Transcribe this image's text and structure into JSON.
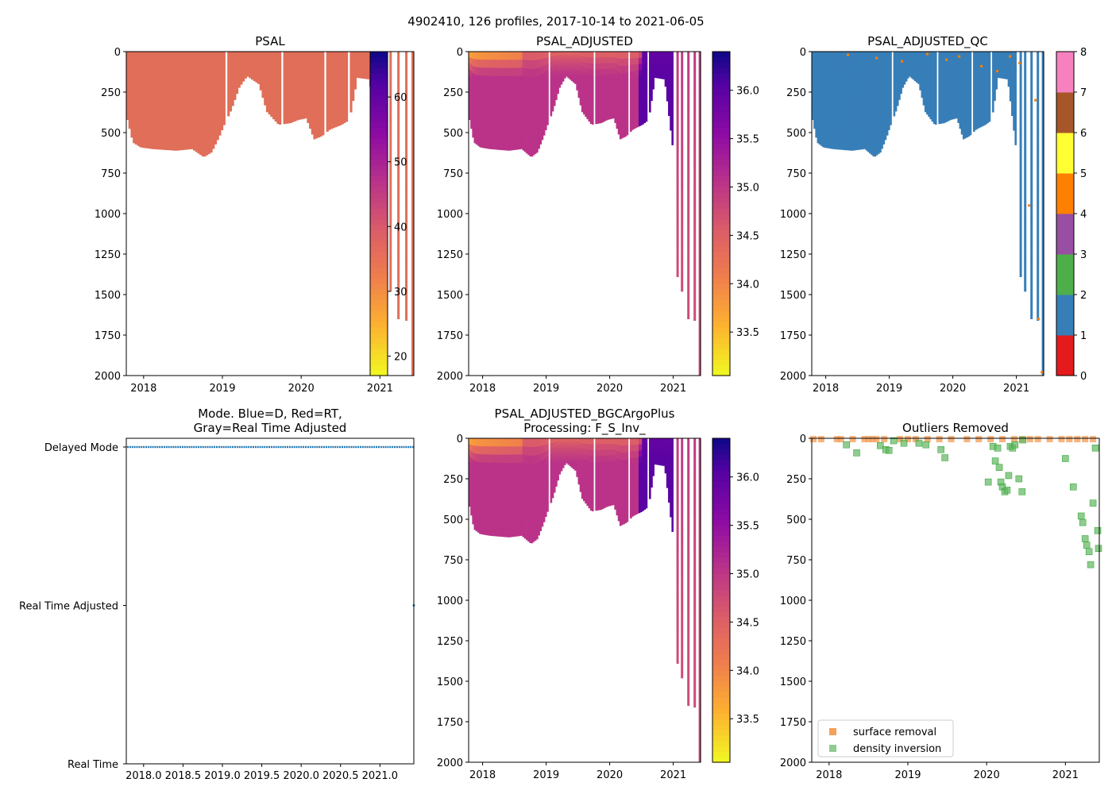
{
  "suptitle": "4902410, 126 profiles, 2017-10-14 to 2021-06-05",
  "colors": {
    "psal_fill": "#e06e58",
    "qc1": "#377eb8",
    "qc_orange": "#ff7f00",
    "dm": "#1f77b4",
    "surface": "#f5a15c",
    "density": "#5fb75f",
    "density_edge": "#2ca02c"
  },
  "chart_data": [
    {
      "id": "psal",
      "type": "heatmap",
      "title": "PSAL",
      "xlim": [
        2017.78,
        2021.43
      ],
      "ylim": [
        2000,
        0
      ],
      "xticks": [
        2018,
        2019,
        2020,
        2021
      ],
      "xtick_labels": [
        "2018",
        "2019",
        "2020",
        "2021"
      ],
      "yticks": [
        0,
        250,
        500,
        750,
        1000,
        1250,
        1500,
        1750,
        2000
      ],
      "ytick_labels": [
        "0",
        "250",
        "500",
        "750",
        "1000",
        "1250",
        "1500",
        "1750",
        "2000"
      ],
      "colorbar": {
        "ticks": [
          20,
          30,
          40,
          50,
          60
        ],
        "tick_labels": [
          "20",
          "30",
          "40",
          "50",
          "60"
        ],
        "range": [
          17,
          67
        ],
        "colormap": "plasma_r"
      },
      "profile_depths": {
        "times": [
          2017.8,
          2018.0,
          2018.2,
          2018.5,
          2018.9,
          2019.0,
          2019.1,
          2019.3,
          2019.5,
          2019.7,
          2020.0,
          2020.3,
          2020.6,
          2020.8,
          2021.0
        ],
        "depths": [
          600,
          580,
          600,
          610,
          660,
          550,
          300,
          150,
          400,
          450,
          430,
          520,
          420,
          160,
          630
        ]
      },
      "deep_profiles": [
        [
          2021.03,
          1390
        ],
        [
          2021.1,
          1480
        ],
        [
          2021.2,
          1650
        ],
        [
          2021.3,
          2000
        ]
      ]
    },
    {
      "id": "psal_adjusted",
      "type": "heatmap",
      "title": "PSAL_ADJUSTED",
      "xlim": [
        2017.78,
        2021.43
      ],
      "ylim": [
        2000,
        0
      ],
      "xticks": [
        2018,
        2019,
        2020,
        2021
      ],
      "xtick_labels": [
        "2018",
        "2019",
        "2020",
        "2021"
      ],
      "yticks": [
        0,
        250,
        500,
        750,
        1000,
        1250,
        1500,
        1750,
        2000
      ],
      "ytick_labels": [
        "0",
        "250",
        "500",
        "750",
        "1000",
        "1250",
        "1500",
        "1750",
        "2000"
      ],
      "colorbar": {
        "ticks": [
          33.5,
          34.0,
          34.5,
          35.0,
          35.5,
          36.0
        ],
        "tick_labels": [
          "33.5",
          "34.0",
          "34.5",
          "35.0",
          "35.5",
          "36.0"
        ],
        "range": [
          33.05,
          36.4
        ],
        "colormap": "plasma_r"
      },
      "value_range": [
        33.1,
        36.3
      ]
    },
    {
      "id": "psal_adjusted_qc",
      "type": "heatmap",
      "title": "PSAL_ADJUSTED_QC",
      "xlim": [
        2017.78,
        2021.43
      ],
      "ylim": [
        2000,
        0
      ],
      "xticks": [
        2018,
        2019,
        2020,
        2021
      ],
      "xtick_labels": [
        "2018",
        "2019",
        "2020",
        "2021"
      ],
      "yticks": [
        0,
        250,
        500,
        750,
        1000,
        1250,
        1500,
        1750,
        2000
      ],
      "ytick_labels": [
        "0",
        "250",
        "500",
        "750",
        "1000",
        "1250",
        "1500",
        "1750",
        "2000"
      ],
      "colorbar": {
        "ticks": [
          0,
          1,
          2,
          3,
          4,
          5,
          6,
          7,
          8
        ],
        "tick_labels": [
          "0",
          "1",
          "2",
          "3",
          "4",
          "5",
          "6",
          "7",
          "8"
        ],
        "categories": [
          {
            "code": 0,
            "color": "#e41a1c"
          },
          {
            "code": 1,
            "color": "#377eb8"
          },
          {
            "code": 2,
            "color": "#4daf4a"
          },
          {
            "code": 3,
            "color": "#984ea3"
          },
          {
            "code": 4,
            "color": "#ff7f00"
          },
          {
            "code": 5,
            "color": "#ffff33"
          },
          {
            "code": 6,
            "color": "#a65628"
          },
          {
            "code": 7,
            "color": "#f781bf"
          },
          {
            "code": 8,
            "color": "#999999"
          }
        ]
      }
    },
    {
      "id": "mode",
      "type": "scatter",
      "title": "Mode. Blue=D, Red=RT,",
      "title2": "Gray=Real Time Adjusted",
      "xlim": [
        2017.78,
        2021.43
      ],
      "xticks": [
        2018.0,
        2018.5,
        2019.0,
        2019.5,
        2020.0,
        2020.5,
        2021.0
      ],
      "xtick_labels": [
        "2018.0",
        "2018.5",
        "2019.0",
        "2019.5",
        "2020.0",
        "2020.5",
        "2021.0"
      ],
      "yticks": [
        0,
        1,
        2
      ],
      "ytick_labels": [
        "Real Time",
        "Real Time Adjusted",
        "Delayed Mode"
      ],
      "series": [
        {
          "name": "D",
          "mode": 2,
          "x_start": 2017.8,
          "x_end": 2021.42,
          "count": 126
        }
      ]
    },
    {
      "id": "psal_bgc",
      "type": "heatmap",
      "title": "PSAL_ADJUSTED_BGCArgoPlus",
      "title2": "Processing: F_S_Inv_",
      "xlim": [
        2017.78,
        2021.43
      ],
      "ylim": [
        2000,
        0
      ],
      "xticks": [
        2018,
        2019,
        2020,
        2021
      ],
      "xtick_labels": [
        "2018",
        "2019",
        "2020",
        "2021"
      ],
      "yticks": [
        0,
        250,
        500,
        750,
        1000,
        1250,
        1500,
        1750,
        2000
      ],
      "ytick_labels": [
        "0",
        "250",
        "500",
        "750",
        "1000",
        "1250",
        "1500",
        "1750",
        "2000"
      ],
      "colorbar": {
        "ticks": [
          33.5,
          34.0,
          34.5,
          35.0,
          35.5,
          36.0
        ],
        "tick_labels": [
          "33.5",
          "34.0",
          "34.5",
          "35.0",
          "35.5",
          "36.0"
        ],
        "range": [
          33.05,
          36.4
        ],
        "colormap": "plasma_r"
      }
    },
    {
      "id": "outliers",
      "type": "scatter",
      "title": "Outliers Removed",
      "xlim": [
        2017.78,
        2021.43
      ],
      "ylim": [
        2000,
        0
      ],
      "xticks": [
        2018,
        2019,
        2020,
        2021
      ],
      "xtick_labels": [
        "2018",
        "2019",
        "2020",
        "2021"
      ],
      "yticks": [
        0,
        250,
        500,
        750,
        1000,
        1250,
        1500,
        1750,
        2000
      ],
      "ytick_labels": [
        "0",
        "250",
        "500",
        "750",
        "1000",
        "1250",
        "1500",
        "1750",
        "2000"
      ],
      "legend": [
        "surface removal",
        "density inversion"
      ],
      "series": [
        {
          "name": "surface removal",
          "x": [
            2017.8,
            2017.9,
            2018.1,
            2018.15,
            2018.3,
            2018.45,
            2018.5,
            2018.55,
            2018.6,
            2018.7,
            2018.9,
            2019.0,
            2019.1,
            2019.25,
            2019.4,
            2019.55,
            2019.75,
            2019.9,
            2020.05,
            2020.2,
            2020.35,
            2020.45,
            2020.55,
            2020.65,
            2020.8,
            2020.95,
            2021.05,
            2021.15,
            2021.25,
            2021.35
          ],
          "y": [
            5,
            5,
            5,
            5,
            5,
            5,
            5,
            5,
            5,
            5,
            5,
            5,
            5,
            5,
            5,
            5,
            5,
            5,
            5,
            5,
            5,
            5,
            5,
            5,
            5,
            5,
            5,
            5,
            5,
            5
          ]
        },
        {
          "name": "density inversion",
          "x": [
            2018.22,
            2018.35,
            2018.65,
            2018.72,
            2018.76,
            2018.82,
            2018.95,
            2019.14,
            2019.23,
            2019.42,
            2019.47,
            2020.02,
            2020.08,
            2020.11,
            2020.14,
            2020.16,
            2020.18,
            2020.2,
            2020.23,
            2020.26,
            2020.28,
            2020.3,
            2020.33,
            2020.36,
            2020.41,
            2020.45,
            2020.46,
            2021.0,
            2021.1,
            2021.2,
            2021.22,
            2021.25,
            2021.27,
            2021.3,
            2021.32,
            2021.35,
            2021.38,
            2021.41,
            2021.42
          ],
          "y": [
            40,
            90,
            45,
            70,
            75,
            15,
            30,
            30,
            40,
            70,
            120,
            270,
            50,
            140,
            60,
            180,
            270,
            300,
            330,
            320,
            230,
            50,
            60,
            40,
            250,
            330,
            10,
            125,
            300,
            480,
            520,
            620,
            660,
            700,
            780,
            400,
            60,
            570,
            680
          ]
        }
      ]
    }
  ]
}
